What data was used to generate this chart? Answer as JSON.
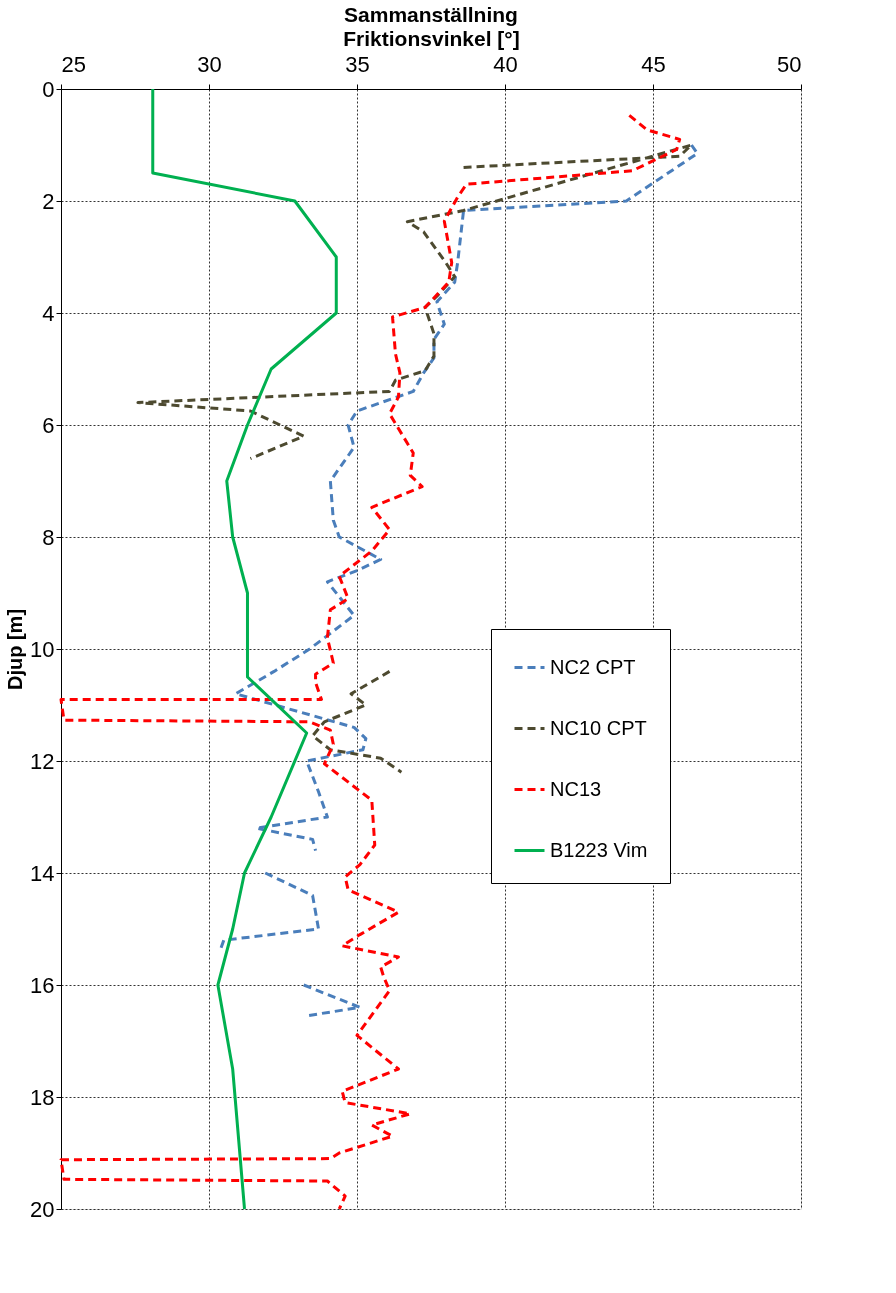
{
  "chart_data": {
    "type": "line",
    "title": "Sammanställning",
    "xlabel": "Friktionsvinkel [°]",
    "ylabel": "Djup [m]",
    "xlim": [
      25,
      50
    ],
    "xticks": [
      25,
      30,
      35,
      40,
      45,
      50
    ],
    "ylim": [
      20,
      0
    ],
    "yticks": [
      0,
      2,
      4,
      6,
      8,
      10,
      12,
      14,
      16,
      18,
      20
    ],
    "grid": true,
    "legend": "right",
    "marker": "none",
    "series": [
      {
        "name": "NC2 CPT",
        "color": "#4a7ebb",
        "line_style": "dashed",
        "x": [
          46.3,
          46.5,
          44.1,
          38.6,
          38.4,
          38.3,
          37.7,
          37.95,
          37.6,
          37.6,
          37.25,
          36.9,
          35.0,
          34.7,
          34.9,
          34.1,
          34.2,
          34.4,
          35.8,
          35.0,
          34.0,
          34.9,
          33.4,
          32.2,
          30.9,
          34.9,
          35.3,
          35.2,
          33.3,
          33.7,
          34.0,
          31.6,
          33.5,
          33.6,
          null,
          31.9,
          33.5,
          33.7,
          30.5,
          30.4,
          null,
          33.2,
          35.1,
          33.3
        ],
        "values": [
          1.0,
          1.15,
          2.0,
          2.17,
          3.1,
          3.45,
          3.8,
          4.2,
          4.47,
          4.8,
          5.07,
          5.4,
          5.75,
          6.0,
          6.4,
          7.0,
          7.7,
          8.0,
          8.4,
          8.6,
          8.8,
          9.4,
          10.0,
          10.4,
          10.8,
          11.4,
          11.6,
          11.8,
          12.0,
          12.55,
          13.0,
          13.2,
          13.4,
          13.6,
          null,
          14.0,
          14.4,
          15.0,
          15.2,
          15.35,
          null,
          16.0,
          16.4,
          16.55
        ]
      },
      {
        "name": "NC10 CPT",
        "color": "#4d4a30",
        "line_style": "dashed",
        "x": [
          38.6,
          45.9,
          46.3,
          38.6,
          36.7,
          37.25,
          38.0,
          38.3,
          37.7,
          37.3,
          37.6,
          37.6,
          37.3,
          36.3,
          36.1,
          27.6,
          31.4,
          33.2,
          31.4,
          null,
          36.1,
          34.8,
          35.3,
          33.9,
          33.5,
          34.1,
          35.8,
          36.5
        ],
        "values": [
          1.4,
          1.2,
          1.0,
          2.17,
          2.37,
          2.55,
          3.1,
          3.35,
          3.7,
          3.9,
          4.37,
          4.77,
          5.03,
          5.2,
          5.4,
          5.6,
          5.75,
          6.2,
          6.6,
          null,
          10.4,
          10.8,
          11.0,
          11.3,
          11.55,
          11.8,
          11.95,
          12.2
        ]
      },
      {
        "name": "NC13",
        "color": "#ff0000",
        "line_style": "dashed",
        "x": [
          44.2,
          44.8,
          45.9,
          45.8,
          44.3,
          38.7,
          38.4,
          37.95,
          38.2,
          38.1,
          37.3,
          36.2,
          36.3,
          36.45,
          36.4,
          36.1,
          36.9,
          36.8,
          37.2,
          35.5,
          36.1,
          35.5,
          34.4,
          34.7,
          34.1,
          34.0,
          34.2,
          33.6,
          33.6,
          33.8,
          25.0,
          25.1,
          33.4,
          34.1,
          34.2,
          33.9,
          35.5,
          35.6,
          35.1,
          34.6,
          34.7,
          36.4,
          35.1,
          34.5,
          36.4,
          35.8,
          35.9,
          36.1,
          35.0,
          36.4,
          34.5,
          34.6,
          36.8,
          35.5,
          36.2,
          34.4,
          34.1,
          25.0,
          25.1,
          34.0,
          34.6,
          34.4
        ],
        "values": [
          0.47,
          0.73,
          0.9,
          1.08,
          1.46,
          1.7,
          1.93,
          2.36,
          3.1,
          3.45,
          3.9,
          4.07,
          4.73,
          5.07,
          5.5,
          5.8,
          6.5,
          6.9,
          7.1,
          7.47,
          7.87,
          8.25,
          8.7,
          9.1,
          9.3,
          9.8,
          10.25,
          10.45,
          10.6,
          10.9,
          10.9,
          11.27,
          11.3,
          11.45,
          11.7,
          12.05,
          12.7,
          13.5,
          13.85,
          14.07,
          14.3,
          14.7,
          15.1,
          15.3,
          15.5,
          15.68,
          15.85,
          16.1,
          16.9,
          17.5,
          17.9,
          18.1,
          18.3,
          18.5,
          18.7,
          19.0,
          19.1,
          19.12,
          19.47,
          19.5,
          19.77,
          20.0
        ]
      },
      {
        "name": "B1223 Vim",
        "color": "#00b050",
        "line_style": "solid",
        "x": [
          28.1,
          28.1,
          32.9,
          34.3,
          34.3,
          32.1,
          31.3,
          30.6,
          30.8,
          31.3,
          31.3,
          33.3,
          32.1,
          31.2,
          30.8,
          30.3,
          30.8,
          31.2
        ],
        "values": [
          0,
          1.5,
          2,
          3,
          4,
          5,
          6,
          7,
          8,
          9,
          10.5,
          11.5,
          13,
          14,
          15,
          16,
          17.5,
          20
        ]
      }
    ]
  }
}
